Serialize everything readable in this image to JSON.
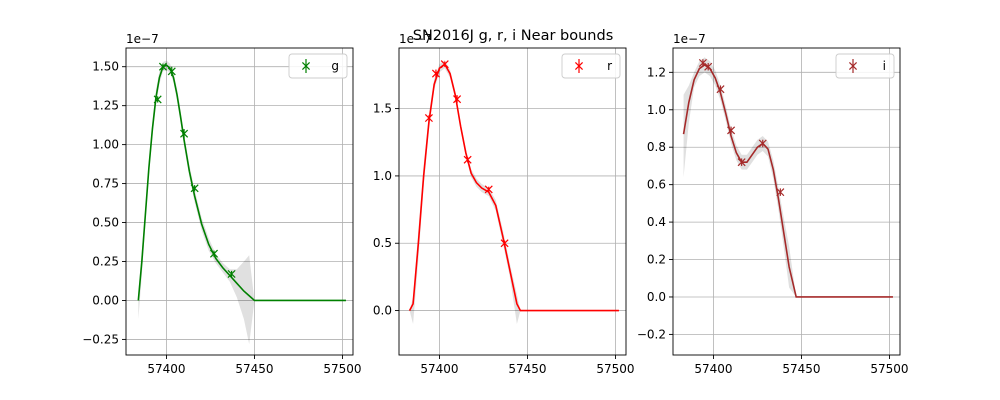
{
  "figure_title": "SN2016J  g, r, i Near bounds",
  "chart_data": [
    {
      "type": "line",
      "band": "g",
      "color": "#008000",
      "offset_label": "1e−7",
      "xlim": [
        57377,
        57506
      ],
      "ylim": [
        -0.35,
        1.62
      ],
      "xticks": [
        57400,
        57450,
        57500
      ],
      "yticks": [
        -0.25,
        0.0,
        0.25,
        0.5,
        0.75,
        1.0,
        1.25,
        1.5
      ],
      "ytick_labels": [
        "−0.25",
        "0.00",
        "0.25",
        "0.50",
        "0.75",
        "1.00",
        "1.25",
        "1.50"
      ],
      "grid": true,
      "legend": {
        "position": "top-right",
        "label": "g"
      },
      "fit_curve": {
        "x": [
          57384,
          57386,
          57388,
          57390,
          57392,
          57394,
          57396,
          57398,
          57400,
          57402,
          57404,
          57406,
          57408,
          57410,
          57413,
          57416,
          57420,
          57424,
          57428,
          57432,
          57436,
          57440,
          57444,
          57447,
          57450,
          57460,
          57470,
          57480,
          57490,
          57502
        ],
        "y": [
          0.0,
          0.25,
          0.55,
          0.85,
          1.1,
          1.3,
          1.43,
          1.5,
          1.51,
          1.49,
          1.43,
          1.32,
          1.18,
          1.03,
          0.83,
          0.67,
          0.49,
          0.36,
          0.27,
          0.21,
          0.16,
          0.11,
          0.06,
          0.03,
          0.0,
          0.0,
          0.0,
          0.0,
          0.0,
          0.0
        ]
      },
      "band_upper": [
        0.05,
        0.32,
        0.6,
        0.9,
        1.15,
        1.35,
        1.47,
        1.53,
        1.54,
        1.52,
        1.46,
        1.36,
        1.22,
        1.07,
        0.87,
        0.71,
        0.53,
        0.4,
        0.3,
        0.24,
        0.2,
        0.2,
        0.25,
        0.29,
        0.0,
        0.0,
        0.0,
        0.0,
        0.0,
        0.0
      ],
      "band_lower": [
        -0.12,
        0.16,
        0.49,
        0.8,
        1.05,
        1.25,
        1.39,
        1.47,
        1.48,
        1.46,
        1.4,
        1.28,
        1.14,
        0.99,
        0.79,
        0.63,
        0.45,
        0.32,
        0.24,
        0.18,
        0.12,
        0.02,
        -0.12,
        -0.28,
        0.0,
        0.0,
        0.0,
        0.0,
        0.0,
        0.0
      ],
      "observations": {
        "x": [
          57395,
          57398,
          57403,
          57410,
          57416,
          57427,
          57437
        ],
        "y": [
          1.29,
          1.5,
          1.47,
          1.07,
          0.72,
          0.3,
          0.17
        ],
        "yerr": [
          0.02,
          0.02,
          0.03,
          0.03,
          0.02,
          0.02,
          0.02
        ]
      }
    },
    {
      "type": "line",
      "band": "r",
      "color": "#ff0000",
      "offset_label": "1e−7",
      "xlim": [
        57377,
        57506
      ],
      "ylim": [
        -0.33,
        1.95
      ],
      "xticks": [
        57400,
        57450,
        57500
      ],
      "yticks": [
        0.0,
        0.5,
        1.0,
        1.5
      ],
      "ytick_labels": [
        "0.0",
        "0.5",
        "1.0",
        "1.5"
      ],
      "grid": true,
      "legend": {
        "position": "top-right",
        "label": "r"
      },
      "fit_curve": {
        "x": [
          57383,
          57385,
          57388,
          57391,
          57394,
          57397,
          57400,
          57403,
          57406,
          57409,
          57412,
          57415,
          57418,
          57421,
          57424,
          57428,
          57432,
          57436,
          57440,
          57444,
          57446,
          57460,
          57480,
          57502
        ],
        "y": [
          0.0,
          0.05,
          0.5,
          1.0,
          1.4,
          1.68,
          1.8,
          1.83,
          1.76,
          1.6,
          1.37,
          1.17,
          1.02,
          0.95,
          0.91,
          0.88,
          0.78,
          0.55,
          0.3,
          0.05,
          0.0,
          0.0,
          0.0,
          0.0
        ]
      },
      "band_upper": [
        0.0,
        0.1,
        0.6,
        1.08,
        1.46,
        1.72,
        1.83,
        1.86,
        1.79,
        1.63,
        1.4,
        1.2,
        1.05,
        0.98,
        0.94,
        0.91,
        0.82,
        0.6,
        0.35,
        0.12,
        0.0,
        0.0,
        0.0,
        0.0
      ],
      "band_lower": [
        0.0,
        -0.1,
        0.38,
        0.92,
        1.34,
        1.64,
        1.77,
        1.8,
        1.73,
        1.57,
        1.34,
        1.14,
        0.99,
        0.92,
        0.88,
        0.85,
        0.74,
        0.5,
        0.25,
        -0.1,
        0.0,
        0.0,
        0.0,
        0.0
      ],
      "observations": {
        "x": [
          57394,
          57398,
          57403,
          57410,
          57416,
          57428,
          57437
        ],
        "y": [
          1.43,
          1.76,
          1.83,
          1.57,
          1.12,
          0.9,
          0.5
        ],
        "yerr": [
          0.02,
          0.03,
          0.02,
          0.03,
          0.02,
          0.02,
          0.02
        ]
      }
    },
    {
      "type": "line",
      "band": "i",
      "color": "#a52a2a",
      "offset_label": "1e−7",
      "xlim": [
        57377,
        57506
      ],
      "ylim": [
        -0.31,
        1.33
      ],
      "xticks": [
        57400,
        57450,
        57500
      ],
      "yticks": [
        -0.2,
        0.0,
        0.2,
        0.4,
        0.6,
        0.8,
        1.0,
        1.2
      ],
      "ytick_labels": [
        "−0.2",
        "0.0",
        "0.2",
        "0.4",
        "0.6",
        "0.8",
        "1.0",
        "1.2"
      ],
      "grid": true,
      "legend": {
        "position": "top-right",
        "label": "i"
      },
      "fit_curve": {
        "x": [
          57383,
          57386,
          57389,
          57392,
          57395,
          57398,
          57401,
          57404,
          57407,
          57410,
          57413,
          57416,
          57419,
          57422,
          57425,
          57428,
          57431,
          57434,
          57437,
          57440,
          57443,
          57447,
          57460,
          57480,
          57502
        ],
        "y": [
          0.87,
          1.04,
          1.16,
          1.22,
          1.24,
          1.22,
          1.17,
          1.09,
          0.98,
          0.86,
          0.77,
          0.72,
          0.72,
          0.76,
          0.8,
          0.82,
          0.79,
          0.68,
          0.52,
          0.34,
          0.16,
          0.0,
          0.0,
          0.0,
          0.0
        ]
      },
      "band_upper": [
        1.08,
        1.13,
        1.2,
        1.26,
        1.28,
        1.26,
        1.21,
        1.13,
        1.02,
        0.9,
        0.81,
        0.76,
        0.76,
        0.8,
        0.84,
        0.86,
        0.83,
        0.73,
        0.58,
        0.42,
        0.27,
        0.0,
        0.0,
        0.0,
        0.0
      ],
      "band_lower": [
        0.64,
        0.93,
        1.12,
        1.18,
        1.2,
        1.18,
        1.13,
        1.05,
        0.94,
        0.82,
        0.73,
        0.68,
        0.68,
        0.72,
        0.76,
        0.78,
        0.75,
        0.63,
        0.46,
        0.26,
        0.05,
        0.0,
        0.0,
        0.0,
        0.0
      ],
      "observations": {
        "x": [
          57394,
          57397,
          57404,
          57410,
          57416,
          57428,
          57438
        ],
        "y": [
          1.25,
          1.23,
          1.11,
          0.89,
          0.72,
          0.82,
          0.56
        ],
        "yerr": [
          0.02,
          0.02,
          0.02,
          0.02,
          0.02,
          0.02,
          0.02
        ]
      }
    }
  ]
}
